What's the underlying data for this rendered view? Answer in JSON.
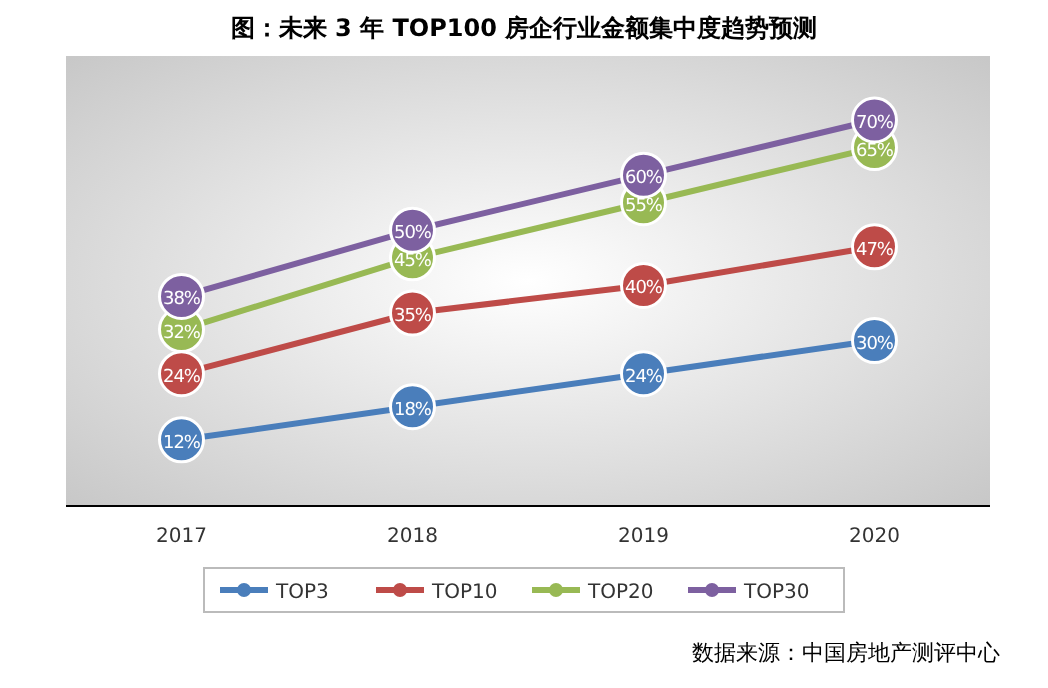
{
  "chart_data": {
    "type": "line",
    "title": "图：未来 3 年 TOP100 房企行业金额集中度趋势预测",
    "categories": [
      "2017",
      "2018",
      "2019",
      "2020"
    ],
    "series": [
      {
        "name": "TOP3",
        "color": "#4a7ebb",
        "values": [
          12,
          18,
          24,
          30
        ],
        "value_labels": [
          "12%",
          "18%",
          "24%",
          "30%"
        ]
      },
      {
        "name": "TOP10",
        "color": "#be4b48",
        "values": [
          24,
          35,
          40,
          47
        ],
        "value_labels": [
          "24%",
          "35%",
          "40%",
          "47%"
        ]
      },
      {
        "name": "TOP20",
        "color": "#98b954",
        "values": [
          32,
          45,
          55,
          65
        ],
        "value_labels": [
          "32%",
          "45%",
          "55%",
          "65%"
        ]
      },
      {
        "name": "TOP30",
        "color": "#7d60a0",
        "values": [
          38,
          50,
          60,
          70
        ],
        "value_labels": [
          "38%",
          "50%",
          "60%",
          "70%"
        ]
      }
    ],
    "legend": "bottom",
    "marker": "circle",
    "annotations": [
      "数据来源：中国房地产测评中心"
    ]
  }
}
